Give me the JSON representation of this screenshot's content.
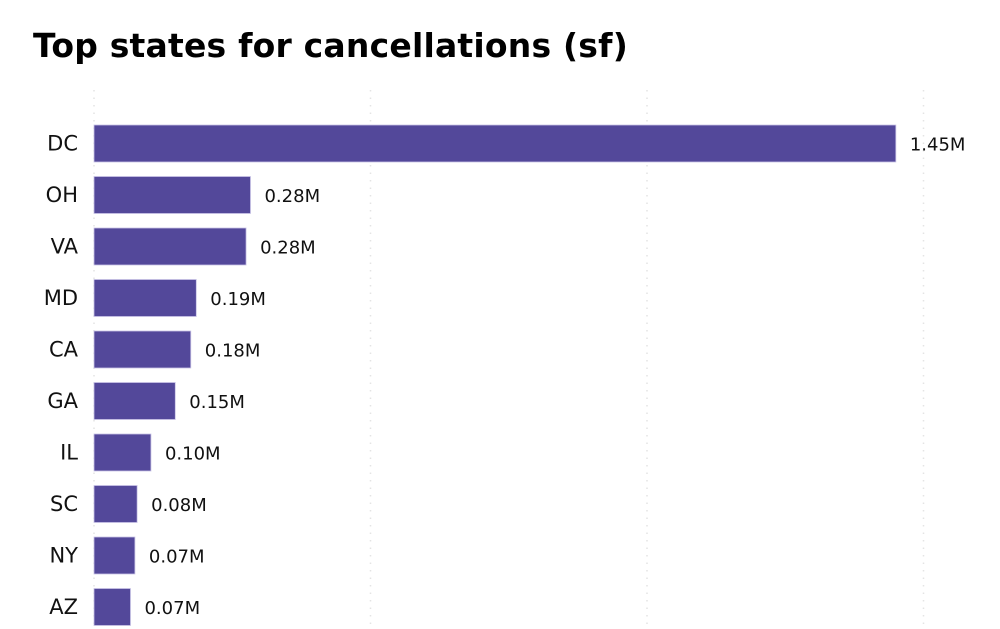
{
  "chart_data": {
    "type": "bar",
    "orientation": "horizontal",
    "title": "Top states for cancellations (sf)",
    "xlabel": "",
    "ylabel": "",
    "categories": [
      "DC",
      "OH",
      "VA",
      "MD",
      "CA",
      "GA",
      "IL",
      "SC",
      "NY",
      "AZ"
    ],
    "values": [
      1.45,
      0.283,
      0.275,
      0.185,
      0.175,
      0.147,
      0.103,
      0.078,
      0.074,
      0.066
    ],
    "value_labels": [
      "1.45M",
      "0.28M",
      "0.28M",
      "0.19M",
      "0.18M",
      "0.15M",
      "0.10M",
      "0.08M",
      "0.07M",
      "0.07M"
    ],
    "units": "M",
    "xlim": [
      0,
      1.5
    ],
    "gridlines_at": [
      0,
      0.5,
      1.0,
      1.5
    ],
    "grid": true,
    "x_tick_labels_visible": false,
    "bar_color": "#53489a",
    "legend": "none"
  }
}
